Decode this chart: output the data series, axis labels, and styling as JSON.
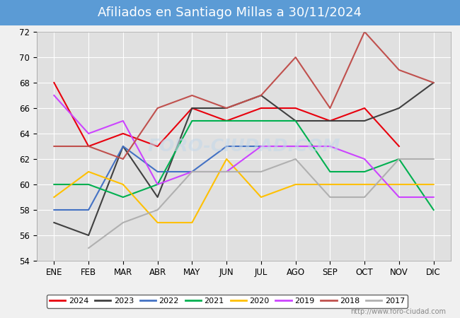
{
  "title": "Afiliados en Santiago Millas a 30/11/2024",
  "title_color": "#ffffff",
  "title_bg": "#5b9bd5",
  "ylim": [
    54,
    72
  ],
  "yticks": [
    54,
    56,
    58,
    60,
    62,
    64,
    66,
    68,
    70,
    72
  ],
  "months": [
    "ENE",
    "FEB",
    "MAR",
    "ABR",
    "MAY",
    "JUN",
    "JUL",
    "AGO",
    "SEP",
    "OCT",
    "NOV",
    "DIC"
  ],
  "series": {
    "2024": {
      "color": "#e8000d",
      "data": [
        68,
        63,
        64,
        63,
        66,
        65,
        66,
        66,
        65,
        66,
        63,
        null
      ]
    },
    "2023": {
      "color": "#404040",
      "data": [
        57,
        56,
        63,
        59,
        66,
        66,
        67,
        65,
        65,
        65,
        66,
        68
      ]
    },
    "2022": {
      "color": "#4472c4",
      "data": [
        58,
        58,
        63,
        61,
        61,
        63,
        63,
        63,
        63,
        null,
        null,
        null
      ]
    },
    "2021": {
      "color": "#00b050",
      "data": [
        60,
        60,
        59,
        60,
        65,
        65,
        65,
        65,
        61,
        61,
        62,
        58
      ]
    },
    "2020": {
      "color": "#ffc000",
      "data": [
        59,
        61,
        60,
        57,
        57,
        62,
        59,
        60,
        60,
        60,
        60,
        60
      ]
    },
    "2019": {
      "color": "#cc44ff",
      "data": [
        67,
        64,
        65,
        60,
        61,
        61,
        63,
        63,
        63,
        62,
        59,
        59
      ]
    },
    "2018": {
      "color": "#c0504d",
      "data": [
        63,
        63,
        62,
        66,
        67,
        66,
        67,
        70,
        66,
        72,
        69,
        68
      ]
    },
    "2017": {
      "color": "#b0b0b0",
      "data": [
        null,
        55,
        57,
        58,
        61,
        61,
        61,
        62,
        59,
        59,
        62,
        62
      ]
    }
  },
  "legend_order": [
    "2024",
    "2023",
    "2022",
    "2021",
    "2020",
    "2019",
    "2018",
    "2017"
  ],
  "watermark": "http://www.foro-ciudad.com",
  "bg_color": "#f0f0f0",
  "plot_bg": "#e0e0e0",
  "grid_color": "#ffffff"
}
